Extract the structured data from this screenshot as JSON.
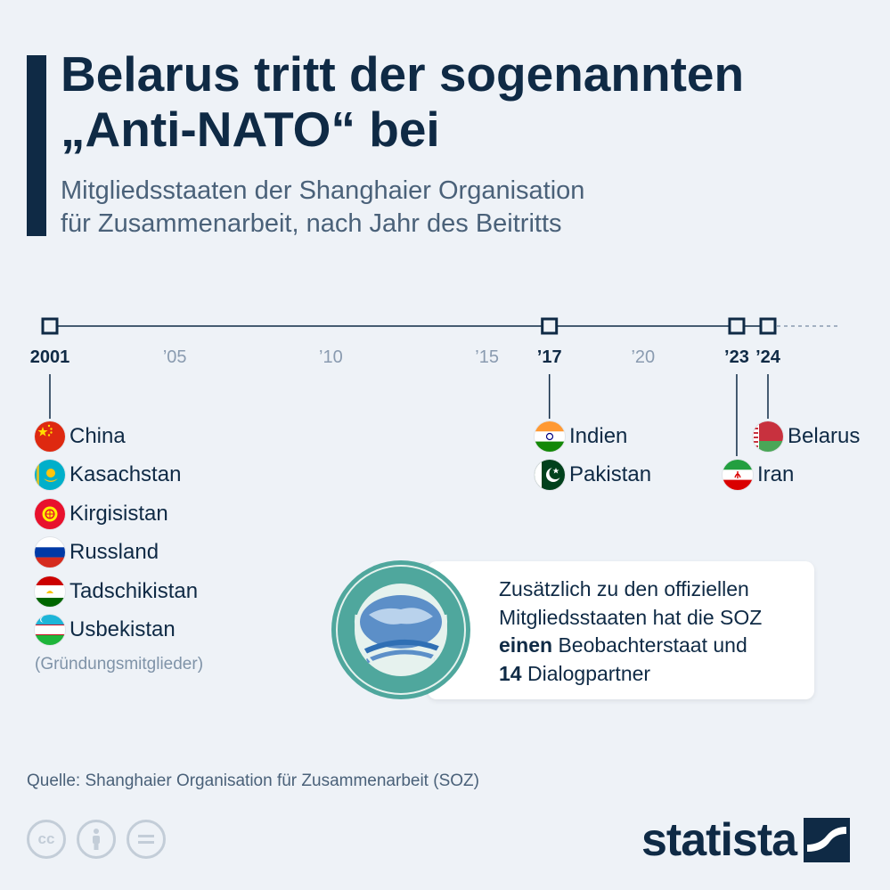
{
  "header": {
    "title_line1": "Belarus tritt der sogenannten",
    "title_line2": "„Anti-NATO“ bei",
    "subtitle_line1": "Mitgliedsstaaten der Shanghaier Organisation",
    "subtitle_line2": "für Zusammenarbeit, nach Jahr des Beitritts"
  },
  "chart_data": {
    "type": "timeline",
    "x_range": [
      2001,
      2024
    ],
    "ticks": [
      {
        "year": 2001,
        "label": "2001",
        "event": true
      },
      {
        "year": 2005,
        "label": "’05",
        "event": false
      },
      {
        "year": 2010,
        "label": "’10",
        "event": false
      },
      {
        "year": 2015,
        "label": "’15",
        "event": false
      },
      {
        "year": 2017,
        "label": "’17",
        "event": true
      },
      {
        "year": 2020,
        "label": "’20",
        "event": false
      },
      {
        "year": 2023,
        "label": "’23",
        "event": true
      },
      {
        "year": 2024,
        "label": "’24",
        "event": true
      }
    ],
    "events": [
      {
        "year": 2001,
        "countries": [
          "China",
          "Kasachstan",
          "Kirgisistan",
          "Russland",
          "Tadschikistan",
          "Usbekistan"
        ],
        "note": "(Gründungsmitglieder)"
      },
      {
        "year": 2017,
        "countries": [
          "Indien",
          "Pakistan"
        ]
      },
      {
        "year": 2023,
        "countries": [
          "Iran"
        ]
      },
      {
        "year": 2024,
        "countries": [
          "Belarus"
        ]
      }
    ],
    "colors": {
      "axis": "#0f2a45",
      "tick_label": "#8a9bb0",
      "event_label": "#0f2a45"
    }
  },
  "flags": {
    "China": "flag-china-icon",
    "Kasachstan": "flag-kazakhstan-icon",
    "Kirgisistan": "flag-kyrgyzstan-icon",
    "Russland": "flag-russia-icon",
    "Tadschikistan": "flag-tajikistan-icon",
    "Usbekistan": "flag-uzbekistan-icon",
    "Indien": "flag-india-icon",
    "Pakistan": "flag-pakistan-icon",
    "Iran": "flag-iran-icon",
    "Belarus": "flag-belarus-icon"
  },
  "infobox": {
    "line1": "Zusätzlich zu den offiziellen",
    "line2": "Mitgliedsstaaten hat die SOZ",
    "bold1": "einen",
    "line3_rest": " Beobachterstaat und",
    "bold2": "14",
    "line4_rest": " Dialogpartner",
    "emblem": "sco-emblem-icon"
  },
  "footer": {
    "source": "Quelle: Shanghaier Organisation für Zusammenarbeit (SOZ)",
    "cc_icons": [
      "cc-icon",
      "by-icon",
      "nd-icon"
    ],
    "brand": "statista"
  }
}
